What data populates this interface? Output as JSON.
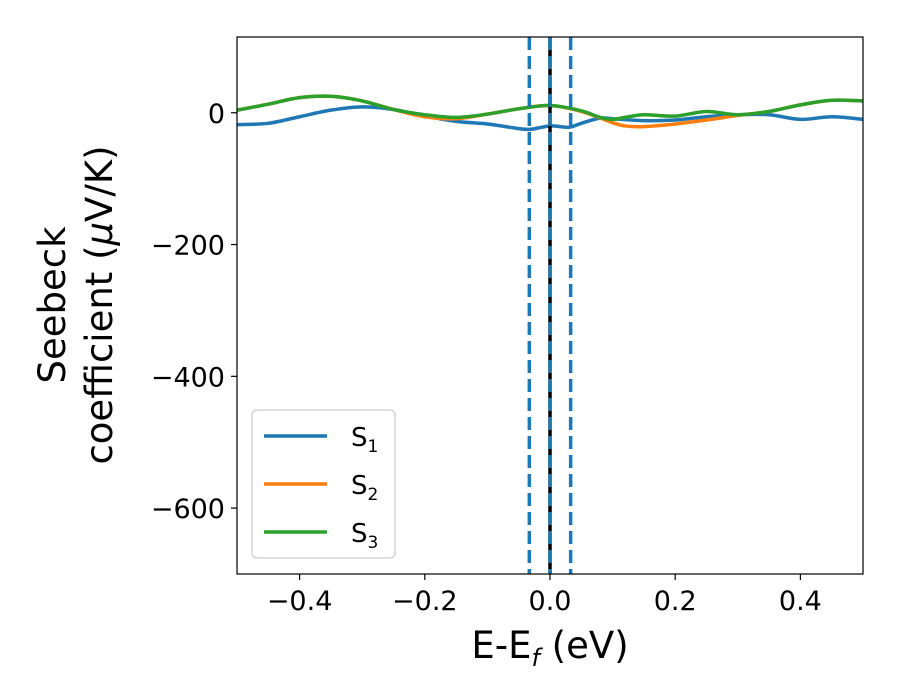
{
  "chart_data": {
    "type": "line",
    "xlabel_main": "E-E",
    "xlabel_sub": "f",
    "xlabel_unit": " (eV)",
    "ylabel_line1": "Seebeck",
    "ylabel_line2_pre": "coefficient  (",
    "ylabel_mu": "μ",
    "ylabel_line2_post": "V/K)",
    "xlim": [
      -0.5,
      0.5
    ],
    "ylim": [
      -700,
      115
    ],
    "xticks": [
      -0.4,
      -0.2,
      0.0,
      0.2,
      0.4
    ],
    "xtick_labels": [
      "−0.4",
      "−0.2",
      "0.0",
      "0.2",
      "0.4"
    ],
    "yticks": [
      0,
      -200,
      -400,
      -600
    ],
    "ytick_labels": [
      "0",
      "−200",
      "−400",
      "−600"
    ],
    "grid": false,
    "legend_position": "lower-left",
    "vlines": [
      {
        "x": -0.033,
        "style": "dashed",
        "color": "#1f77b4"
      },
      {
        "x": 0.0,
        "style": "solid",
        "color": "#000000"
      },
      {
        "x": 0.0,
        "style": "dashed",
        "color": "#1f77b4"
      },
      {
        "x": 0.033,
        "style": "dashed",
        "color": "#1f77b4"
      }
    ],
    "series": [
      {
        "name": "S",
        "sub": "1",
        "color": "#1f77b4",
        "x": [
          -0.5,
          -0.45,
          -0.4,
          -0.35,
          -0.3,
          -0.25,
          -0.2,
          -0.15,
          -0.1,
          -0.05,
          -0.03,
          0.0,
          0.03,
          0.05,
          0.08,
          0.1,
          0.15,
          0.2,
          0.25,
          0.3,
          0.35,
          0.4,
          0.45,
          0.5
        ],
        "y": [
          -18,
          -16,
          -6,
          4,
          9,
          5,
          -5,
          -13,
          -17,
          -24,
          -25,
          -20,
          -22,
          -16,
          -8,
          -9,
          -12,
          -11,
          -6,
          -3,
          -3,
          -10,
          -6,
          -10
        ]
      },
      {
        "name": "S",
        "sub": "2",
        "color": "#ff7f0e",
        "x": [
          -0.5,
          -0.45,
          -0.4,
          -0.35,
          -0.3,
          -0.25,
          -0.2,
          -0.15,
          -0.1,
          -0.05,
          0.0,
          0.05,
          0.1,
          0.12,
          0.15,
          0.2,
          0.25,
          0.3,
          0.35,
          0.4,
          0.45,
          0.5
        ],
        "y": [
          4,
          13,
          23,
          25,
          18,
          5,
          -6,
          -9,
          -2,
          6,
          11,
          2,
          -15,
          -20,
          -21,
          -17,
          -11,
          -4,
          2,
          12,
          19,
          18
        ]
      },
      {
        "name": "S",
        "sub": "3",
        "color": "#2ca02c",
        "x": [
          -0.5,
          -0.45,
          -0.4,
          -0.35,
          -0.3,
          -0.25,
          -0.2,
          -0.15,
          -0.1,
          -0.05,
          0.0,
          0.05,
          0.08,
          0.1,
          0.12,
          0.15,
          0.2,
          0.25,
          0.3,
          0.35,
          0.4,
          0.45,
          0.5
        ],
        "y": [
          4,
          13,
          23,
          25,
          18,
          5,
          -3,
          -7,
          -2,
          6,
          11,
          3,
          -7,
          -10,
          -7,
          -3,
          -5,
          2,
          -3,
          2,
          12,
          19,
          18
        ]
      }
    ]
  }
}
